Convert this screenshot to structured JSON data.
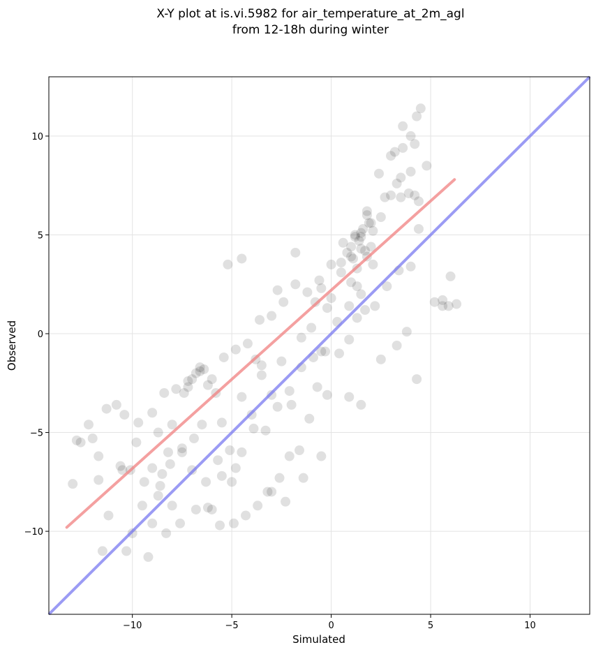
{
  "chart_data": {
    "type": "scatter",
    "title": [
      "X-Y plot at is.vi.5982 for air_temperature_at_2m_agl",
      "from 12-18h during winter"
    ],
    "xlabel": "Simulated",
    "ylabel": "Observed",
    "xlim": [
      -14.2,
      13.0
    ],
    "ylim": [
      -14.2,
      13.0
    ],
    "xticks": [
      -10,
      -5,
      0,
      5,
      10
    ],
    "yticks": [
      -10,
      -5,
      0,
      5,
      10
    ],
    "xtick_labels": [
      "−10",
      "−5",
      "0",
      "5",
      "10"
    ],
    "ytick_labels": [
      "−10",
      "−5",
      "0",
      "5",
      "10"
    ],
    "grid": true,
    "colors": {
      "points": "#000000",
      "fit_line": "#f08080",
      "identity_line": "#7070f0"
    },
    "regression_line": {
      "x": [
        -13.3,
        6.2
      ],
      "y": [
        -9.8,
        7.8
      ]
    },
    "identity_line": {
      "x": [
        -14.2,
        13.0
      ],
      "y": [
        -14.2,
        13.0
      ]
    },
    "points": {
      "x": [
        -13.0,
        -12.6,
        -12.2,
        -11.7,
        -11.3,
        -10.8,
        -10.4,
        -10.1,
        -9.7,
        -9.4,
        -9.0,
        -8.7,
        -8.4,
        -8.1,
        -7.8,
        -7.5,
        -7.2,
        -6.9,
        -6.6,
        -6.3,
        -6.0,
        -5.7,
        -5.4,
        -5.1,
        -4.8,
        -4.5,
        -4.2,
        -3.9,
        -3.6,
        -3.3,
        -3.0,
        -2.7,
        -2.4,
        -2.1,
        -1.8,
        -1.5,
        -1.2,
        -0.9,
        -0.6,
        -0.3,
        0.0,
        0.3,
        0.6,
        0.9,
        1.2,
        1.5,
        1.8,
        2.1,
        2.4,
        2.7,
        3.0,
        3.3,
        3.6,
        3.9,
        4.2,
        4.5,
        4.8,
        5.2,
        5.6,
        6.0,
        -12.8,
        -12.0,
        -11.2,
        -10.6,
        -10.0,
        -9.5,
        -9.0,
        -8.5,
        -8.0,
        -7.5,
        -7.0,
        -6.5,
        -6.0,
        -5.5,
        -5.0,
        -4.5,
        -4.0,
        -3.5,
        -3.0,
        -2.5,
        -2.0,
        -1.5,
        -1.0,
        -0.5,
        0.0,
        0.5,
        1.0,
        1.5,
        2.0,
        2.5,
        3.0,
        3.5,
        4.0,
        -11.5,
        -10.3,
        -9.2,
        -8.3,
        -7.6,
        -6.8,
        -6.2,
        -5.6,
        -4.9,
        -4.3,
        -3.7,
        -3.2,
        -2.6,
        -2.1,
        -1.6,
        -1.1,
        -0.7,
        -0.2,
        0.4,
        0.9,
        1.3,
        1.7,
        2.2,
        2.8,
        3.4,
        4.0,
        4.4,
        -7.4,
        -7.0,
        -6.6,
        -6.2,
        -5.8,
        -7.2,
        -6.8,
        -6.4,
        -3.8,
        -3.5,
        1.0,
        1.2,
        1.4,
        1.6,
        1.8,
        2.0,
        1.1,
        1.3,
        1.5,
        1.7,
        1.9,
        0.5,
        0.8,
        1.0,
        1.3,
        1.5,
        1.8,
        2.1,
        -0.8,
        -0.5,
        -0.2,
        3.2,
        3.6,
        4.0,
        4.3,
        3.5,
        4.2,
        4.4,
        -9.0,
        -8.6,
        -8.2,
        -8.0,
        -9.8,
        -10.5,
        -11.7,
        -8.7,
        -5.5,
        -4.8,
        -3.0,
        -2.3,
        -1.4,
        -0.5,
        0.9,
        1.5,
        2.5,
        3.3,
        3.8,
        4.3,
        5.6,
        5.9,
        6.3,
        -4.5,
        -5.2,
        -2.7,
        -1.8
      ],
      "y": [
        -7.6,
        -5.5,
        -4.6,
        -6.2,
        -3.8,
        -3.6,
        -4.1,
        -6.9,
        -4.5,
        -7.5,
        -4.0,
        -8.2,
        -3.0,
        -6.6,
        -2.8,
        -6.0,
        -2.7,
        -5.3,
        -1.9,
        -7.5,
        -2.3,
        -6.4,
        -1.2,
        -5.9,
        -0.8,
        -6.0,
        -0.5,
        -4.8,
        0.7,
        -4.9,
        0.9,
        -3.7,
        1.6,
        -2.9,
        2.5,
        -1.7,
        2.1,
        -1.2,
        2.7,
        -0.9,
        3.5,
        0.6,
        4.6,
        1.4,
        4.9,
        4.3,
        6.2,
        5.2,
        8.1,
        6.9,
        9.0,
        7.6,
        10.5,
        7.1,
        9.6,
        11.4,
        8.5,
        1.6,
        1.4,
        2.9,
        -5.4,
        -5.3,
        -9.2,
        -6.7,
        -10.1,
        -8.7,
        -9.6,
        -7.1,
        -8.7,
        -5.8,
        -6.9,
        -4.6,
        -8.9,
        -4.5,
        -7.5,
        -3.2,
        -4.1,
        -2.1,
        -3.1,
        -1.4,
        -3.6,
        -0.2,
        0.3,
        -0.9,
        1.8,
        3.1,
        3.9,
        5.1,
        5.6,
        5.9,
        7.0,
        7.9,
        8.2,
        -11.0,
        -11.0,
        -11.3,
        -10.1,
        -9.6,
        -8.9,
        -8.8,
        -9.7,
        -9.6,
        -9.2,
        -8.7,
        -8.0,
        -7.3,
        -6.2,
        -5.9,
        -4.3,
        -2.7,
        -3.1,
        -1.0,
        -0.3,
        0.8,
        1.2,
        1.4,
        2.4,
        3.2,
        3.4,
        5.3,
        -3.0,
        -2.3,
        -1.7,
        -2.6,
        -3.0,
        -2.4,
        -2.0,
        -1.8,
        -1.3,
        -1.6,
        4.4,
        5.0,
        4.7,
        5.3,
        6.0,
        4.4,
        3.8,
        3.3,
        4.9,
        4.2,
        5.6,
        3.6,
        4.1,
        2.6,
        2.4,
        2.0,
        3.9,
        3.5,
        1.6,
        2.3,
        1.3,
        9.2,
        9.4,
        10.0,
        11.0,
        6.9,
        7.0,
        6.7,
        -6.8,
        -7.7,
        -6.0,
        -4.6,
        -5.5,
        -6.9,
        -7.4,
        -5.0,
        -7.2,
        -6.8,
        -8.0,
        -8.5,
        -7.3,
        -6.2,
        -3.2,
        -3.6,
        -1.3,
        -0.6,
        0.1,
        -2.3,
        1.7,
        1.4,
        1.5,
        3.8,
        3.5,
        2.2,
        4.1
      ]
    }
  }
}
